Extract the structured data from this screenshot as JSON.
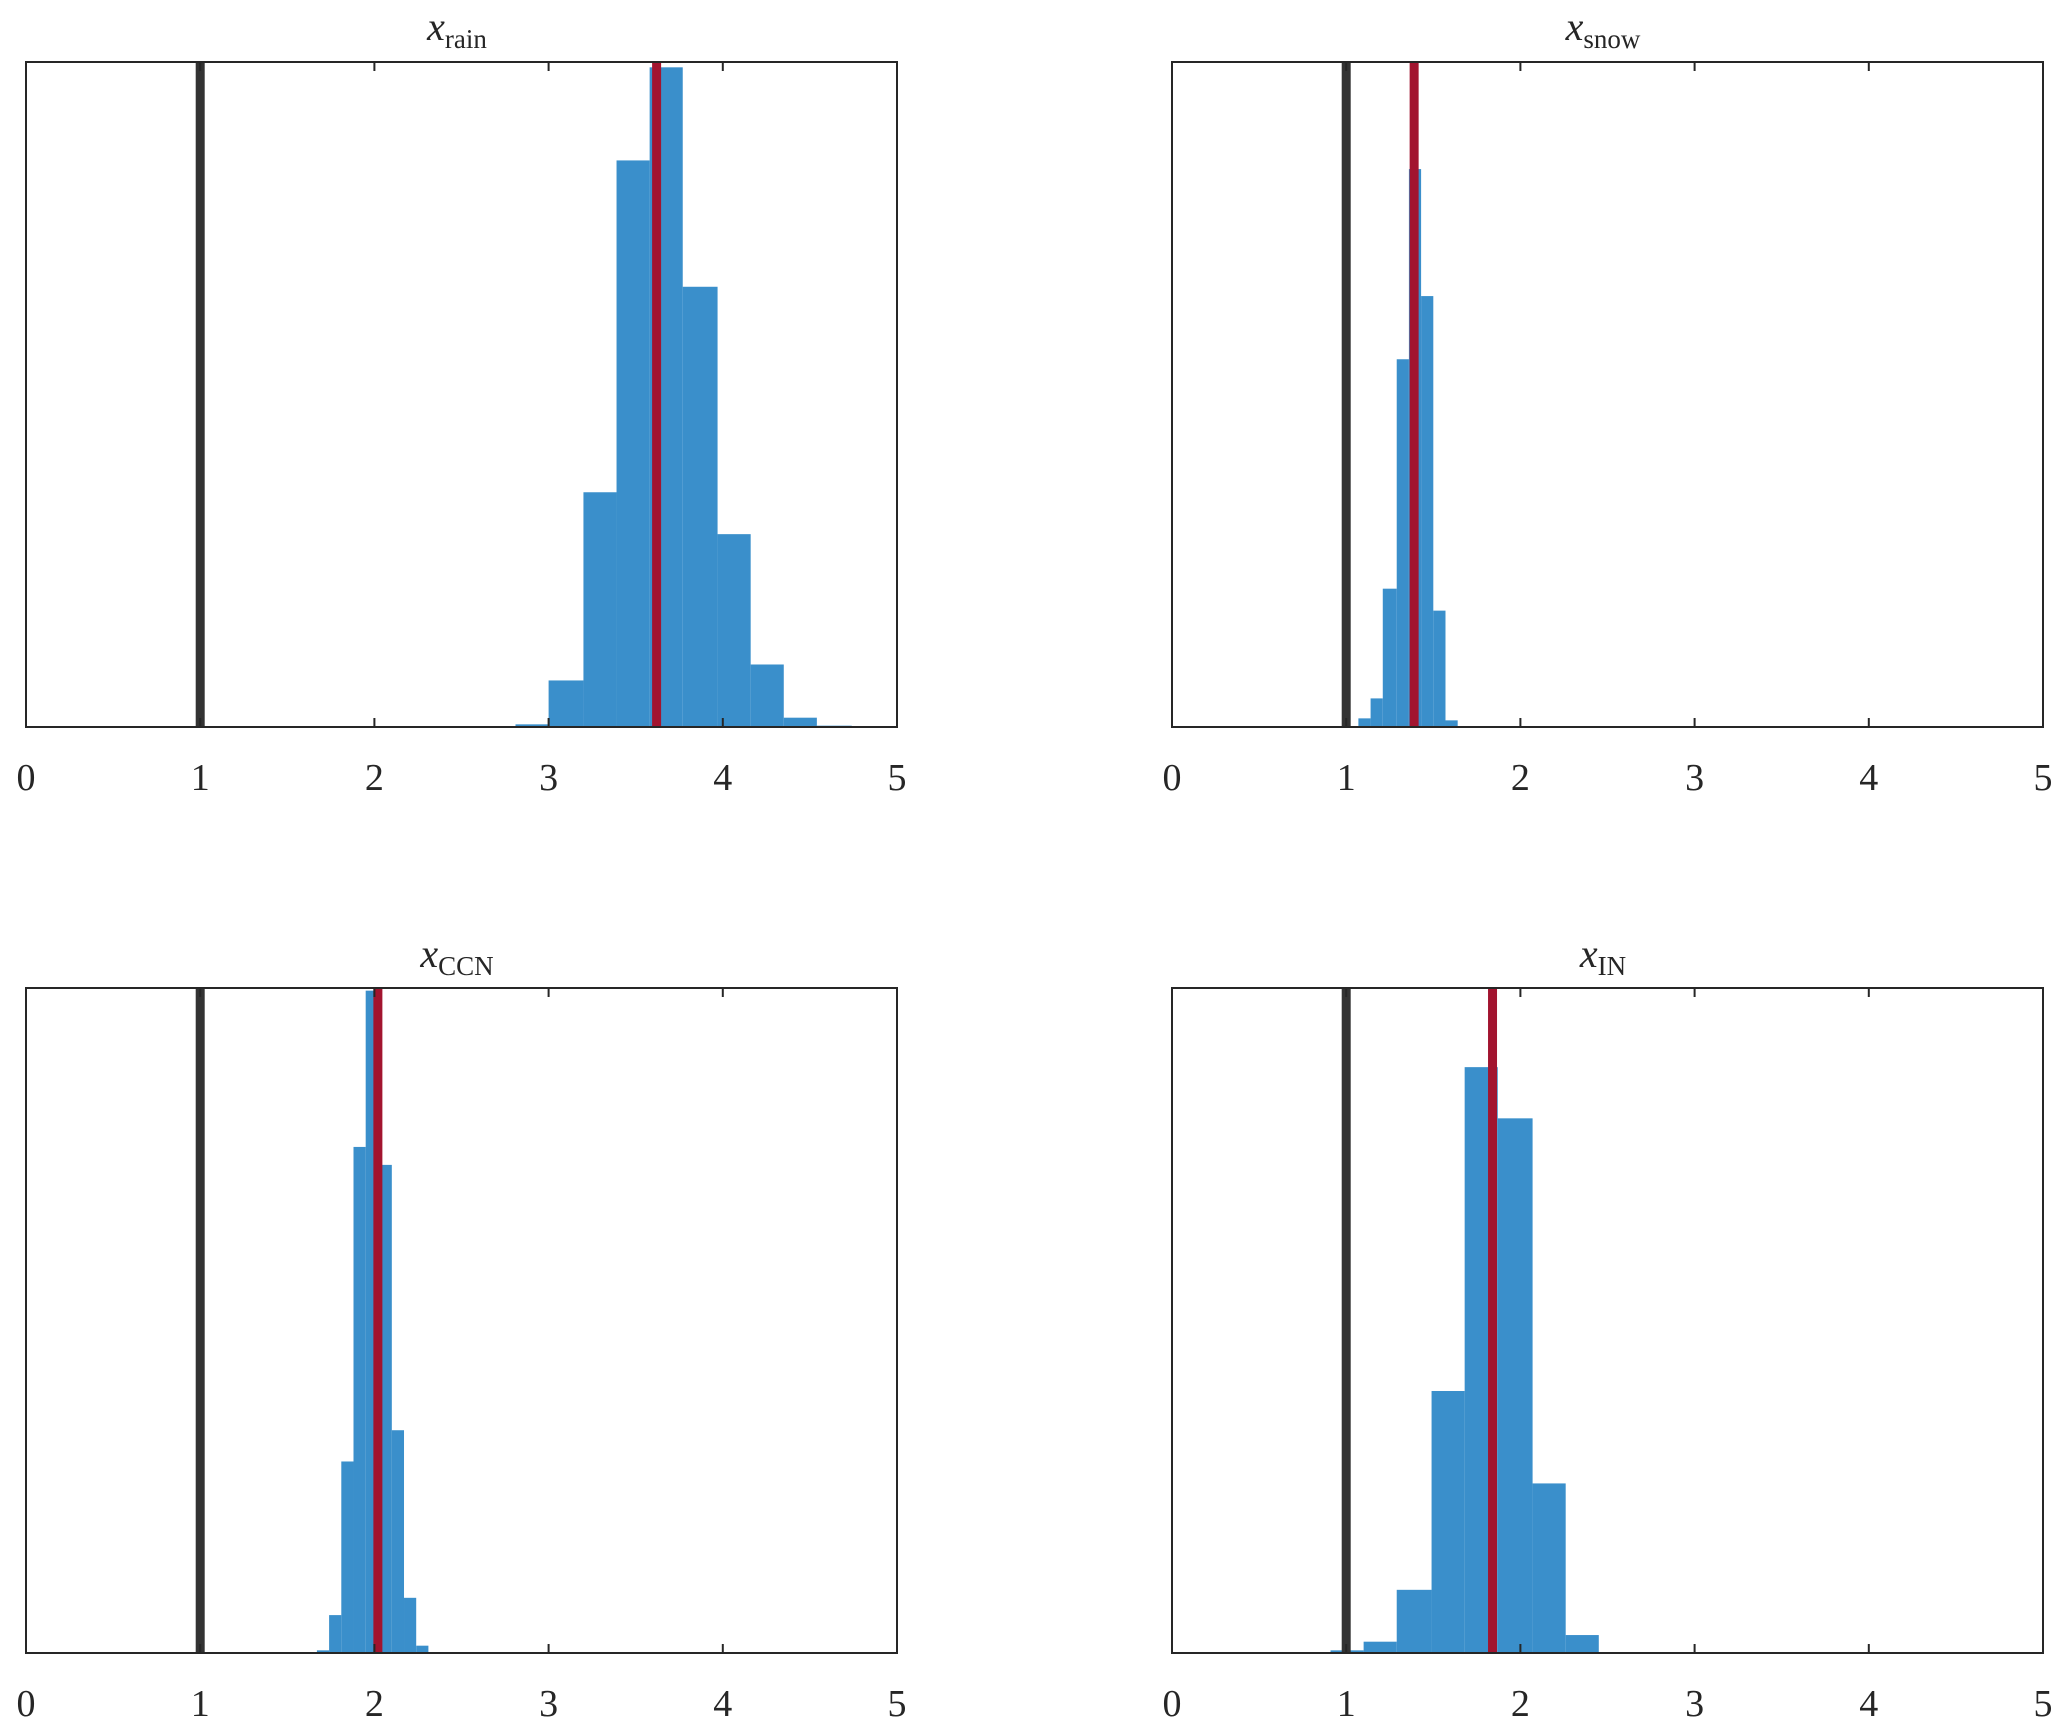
{
  "chart_data": [
    {
      "type": "histogram",
      "title": "x",
      "title_subscript": "rain",
      "xlim": [
        0,
        5
      ],
      "xticks": [
        0,
        1,
        2,
        3,
        4,
        5
      ],
      "yticks": [],
      "bin_width": 0.193,
      "bars": [
        {
          "x0": 2.81,
          "x1": 3.0,
          "h": 0.004
        },
        {
          "x0": 3.0,
          "x1": 3.2,
          "h": 0.07
        },
        {
          "x0": 3.2,
          "x1": 3.39,
          "h": 0.353
        },
        {
          "x0": 3.39,
          "x1": 3.58,
          "h": 0.852
        },
        {
          "x0": 3.58,
          "x1": 3.77,
          "h": 0.992
        },
        {
          "x0": 3.77,
          "x1": 3.97,
          "h": 0.662
        },
        {
          "x0": 3.97,
          "x1": 4.16,
          "h": 0.29
        },
        {
          "x0": 4.16,
          "x1": 4.35,
          "h": 0.094
        },
        {
          "x0": 4.35,
          "x1": 4.54,
          "h": 0.014
        },
        {
          "x0": 4.54,
          "x1": 4.74,
          "h": 0.002
        }
      ],
      "reference_lines": [
        {
          "x": 1.0,
          "color": "#333333"
        },
        {
          "x": 3.62,
          "color": "#a2142f"
        }
      ]
    },
    {
      "type": "histogram",
      "title": "x",
      "title_subscript": "snow",
      "xlim": [
        0,
        5
      ],
      "xticks": [
        0,
        1,
        2,
        3,
        4,
        5
      ],
      "yticks": [],
      "bin_width": 0.071,
      "bars": [
        {
          "x0": 1.07,
          "x1": 1.14,
          "h": 0.013
        },
        {
          "x0": 1.14,
          "x1": 1.21,
          "h": 0.043
        },
        {
          "x0": 1.21,
          "x1": 1.29,
          "h": 0.208
        },
        {
          "x0": 1.29,
          "x1": 1.36,
          "h": 0.553
        },
        {
          "x0": 1.36,
          "x1": 1.43,
          "h": 0.839
        },
        {
          "x0": 1.43,
          "x1": 1.5,
          "h": 0.648
        },
        {
          "x0": 1.5,
          "x1": 1.57,
          "h": 0.175
        },
        {
          "x0": 1.57,
          "x1": 1.64,
          "h": 0.01
        }
      ],
      "reference_lines": [
        {
          "x": 1.0,
          "color": "#333333"
        },
        {
          "x": 1.39,
          "color": "#a2142f"
        }
      ]
    },
    {
      "type": "histogram",
      "title": "x",
      "title_subscript": "CCN",
      "xlim": [
        0,
        5
      ],
      "xticks": [
        0,
        1,
        2,
        3,
        4,
        5
      ],
      "yticks": [],
      "bin_width": 0.071,
      "bars": [
        {
          "x0": 1.67,
          "x1": 1.74,
          "h": 0.004
        },
        {
          "x0": 1.74,
          "x1": 1.81,
          "h": 0.057
        },
        {
          "x0": 1.81,
          "x1": 1.88,
          "h": 0.288
        },
        {
          "x0": 1.88,
          "x1": 1.95,
          "h": 0.761
        },
        {
          "x0": 1.95,
          "x1": 2.02,
          "h": 0.996
        },
        {
          "x0": 2.02,
          "x1": 2.1,
          "h": 0.734
        },
        {
          "x0": 2.1,
          "x1": 2.17,
          "h": 0.335
        },
        {
          "x0": 2.17,
          "x1": 2.24,
          "h": 0.083
        },
        {
          "x0": 2.24,
          "x1": 2.31,
          "h": 0.011
        }
      ],
      "reference_lines": [
        {
          "x": 1.0,
          "color": "#333333"
        },
        {
          "x": 2.02,
          "color": "#a2142f"
        }
      ]
    },
    {
      "type": "histogram",
      "title": "x",
      "title_subscript": "IN",
      "xlim": [
        0,
        5
      ],
      "xticks": [
        0,
        1,
        2,
        3,
        4,
        5
      ],
      "yticks": [],
      "bin_width": 0.193,
      "bars": [
        {
          "x0": 0.91,
          "x1": 1.1,
          "h": 0.004
        },
        {
          "x0": 1.1,
          "x1": 1.29,
          "h": 0.017
        },
        {
          "x0": 1.29,
          "x1": 1.49,
          "h": 0.095
        },
        {
          "x0": 1.49,
          "x1": 1.68,
          "h": 0.394
        },
        {
          "x0": 1.68,
          "x1": 1.87,
          "h": 0.881
        },
        {
          "x0": 1.87,
          "x1": 2.07,
          "h": 0.804
        },
        {
          "x0": 2.07,
          "x1": 2.26,
          "h": 0.255
        },
        {
          "x0": 2.26,
          "x1": 2.45,
          "h": 0.027
        }
      ],
      "reference_lines": [
        {
          "x": 1.0,
          "color": "#333333"
        },
        {
          "x": 1.84,
          "color": "#a2142f"
        }
      ]
    }
  ],
  "colors": {
    "bars": "#3a8fcb",
    "prior_line": "#333333",
    "estimate_line": "#a2142f",
    "axes": "#262626"
  }
}
